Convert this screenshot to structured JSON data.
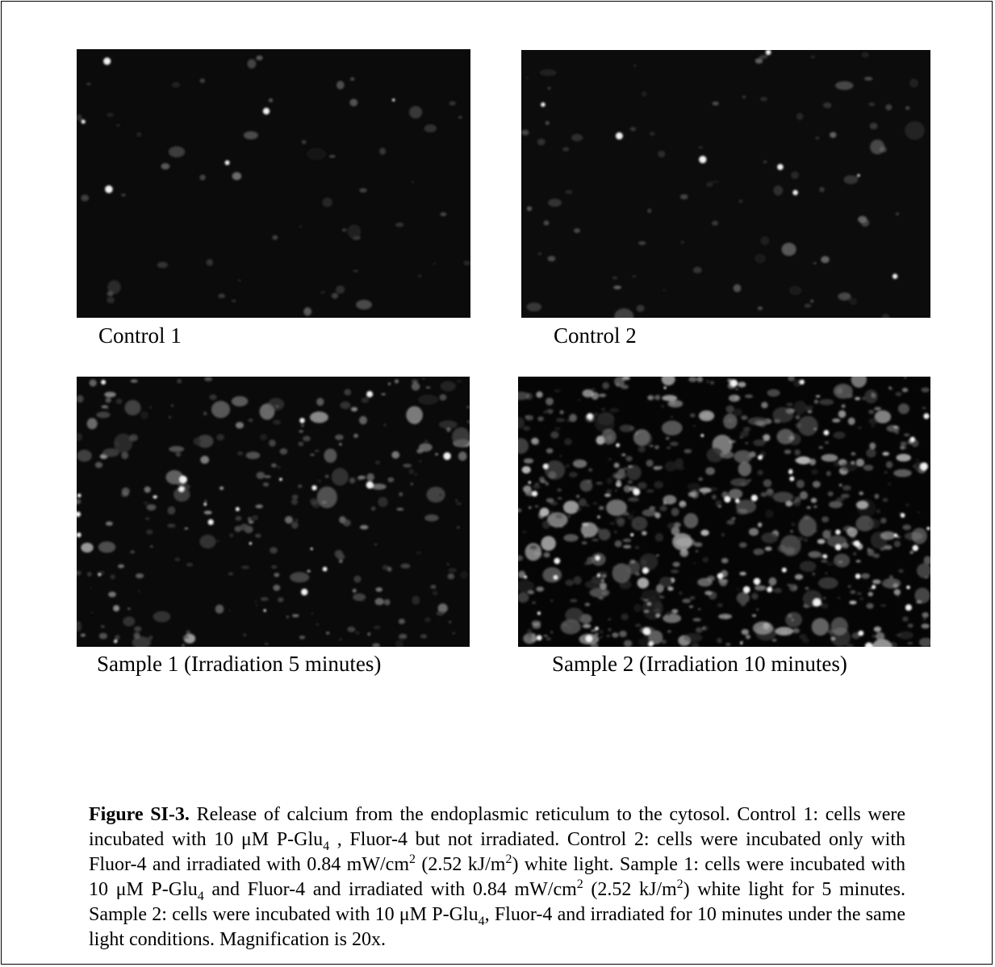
{
  "panels": [
    {
      "id": "control-1",
      "label": "Control 1",
      "density": 55,
      "brightness": 0.35,
      "bg": "#0b0b0b"
    },
    {
      "id": "control-2",
      "label": "Control 2",
      "density": 80,
      "brightness": 0.38,
      "bg": "#0c0c0c"
    },
    {
      "id": "sample-1",
      "label": "Sample 1 (Irradiation 5 minutes)",
      "density": 260,
      "brightness": 0.6,
      "bg": "#0a0a0a"
    },
    {
      "id": "sample-2",
      "label": "Sample 2 (Irradiation 10 minutes)",
      "density": 650,
      "brightness": 0.75,
      "bg": "#050505"
    }
  ],
  "caption": {
    "title": "Figure SI-3.",
    "p1": " Release of calcium from the endoplasmic reticulum to the cytosol. Control 1: cells were incubated with 10 μM P-Glu",
    "sub1": "4",
    "p2": " , Fluor-4 but not irradiated. Control 2: cells were incubated only with Fluor-4 and irradiated with 0.84 mW/cm",
    "sup1": "2",
    "p3": " (2.52 kJ/m",
    "sup2": "2",
    "p4": ") white light. Sample 1: cells were incubated with 10 μM P-Glu",
    "sub2": "4",
    "p5": " and Fluor-4 and irradiated with 0.84 mW/cm",
    "sup3": "2",
    "p6": " (2.52 kJ/m",
    "sup4": "2",
    "p7": ") white light for 5 minutes. Sample 2: cells were incubated with 10 μM P-Glu",
    "sub3": "4",
    "p8": ", Fluor-4 and irradiated for 10 minutes under the same light conditions. Magnification is 20x."
  }
}
